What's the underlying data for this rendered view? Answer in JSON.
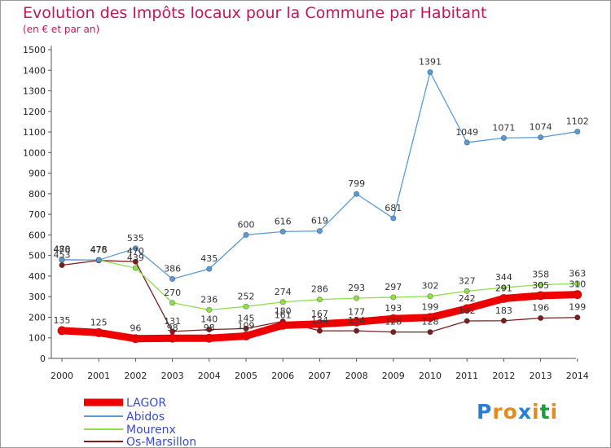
{
  "chart_data": {
    "type": "line",
    "title": "Evolution des Impôts locaux pour la Commune par Habitant",
    "subtitle": "(en € et par an)",
    "x": [
      "2000",
      "2001",
      "2002",
      "2003",
      "2004",
      "2005",
      "2006",
      "2007",
      "2008",
      "2009",
      "2010",
      "2011",
      "2012",
      "2013",
      "2014"
    ],
    "ylim": [
      0,
      1500
    ],
    "yticks": [
      0,
      100,
      200,
      300,
      400,
      500,
      600,
      700,
      800,
      900,
      1000,
      1100,
      1200,
      1300,
      1400,
      1500
    ],
    "grid": false,
    "legend_position": "bottom-left",
    "series": [
      {
        "name": "LAGOR",
        "color": "#ee0000",
        "values": [
          135,
          125,
          96,
          98,
          98,
          109,
          161,
          167,
          177,
          193,
          199,
          242,
          291,
          305,
          310
        ],
        "labels": [
          "135",
          "125",
          "96",
          "98",
          "98",
          "109",
          "161",
          "167",
          "177",
          "193",
          "199",
          "242",
          "291",
          "305",
          "310"
        ]
      },
      {
        "name": "Abidos",
        "color": "#5b9bd5",
        "values": [
          480,
          478,
          535,
          386,
          435,
          600,
          616,
          619,
          799,
          681,
          1391,
          1049,
          1071,
          1074,
          1102
        ],
        "labels": [
          "480",
          "478",
          "535",
          "386",
          "435",
          "600",
          "616",
          "619",
          "799",
          "681",
          "1391",
          "1049",
          "1071",
          "1074",
          "1102"
        ]
      },
      {
        "name": "Mourenx",
        "color": "#8ee04a",
        "values": [
          478,
          478,
          439,
          270,
          236,
          252,
          274,
          286,
          293,
          297,
          302,
          327,
          344,
          358,
          363
        ],
        "labels": [
          "478",
          "478",
          "439",
          "270",
          "236",
          "252",
          "274",
          "286",
          "293",
          "297",
          "302",
          "327",
          "344",
          "358",
          "363"
        ]
      },
      {
        "name": "Os-Marsillon",
        "color": "#7a1e1e",
        "values": [
          453,
          476,
          470,
          131,
          140,
          145,
          180,
          134,
          134,
          128,
          128,
          182,
          183,
          196,
          199
        ],
        "labels": [
          "453",
          "476",
          "470",
          "131",
          "140",
          "145",
          "180",
          "134",
          "134",
          "128",
          "128",
          "182",
          "183",
          "196",
          "199"
        ]
      }
    ]
  },
  "logo": {
    "text": "Proxiti",
    "letters": [
      "P",
      "r",
      "o",
      "x",
      "i",
      "t",
      "i"
    ],
    "colors": [
      "#2a7fd4",
      "#e88a1a",
      "#e88a1a",
      "#2a7fd4",
      "#e88a1a",
      "#1a9e3a",
      "#e88a1a"
    ]
  }
}
